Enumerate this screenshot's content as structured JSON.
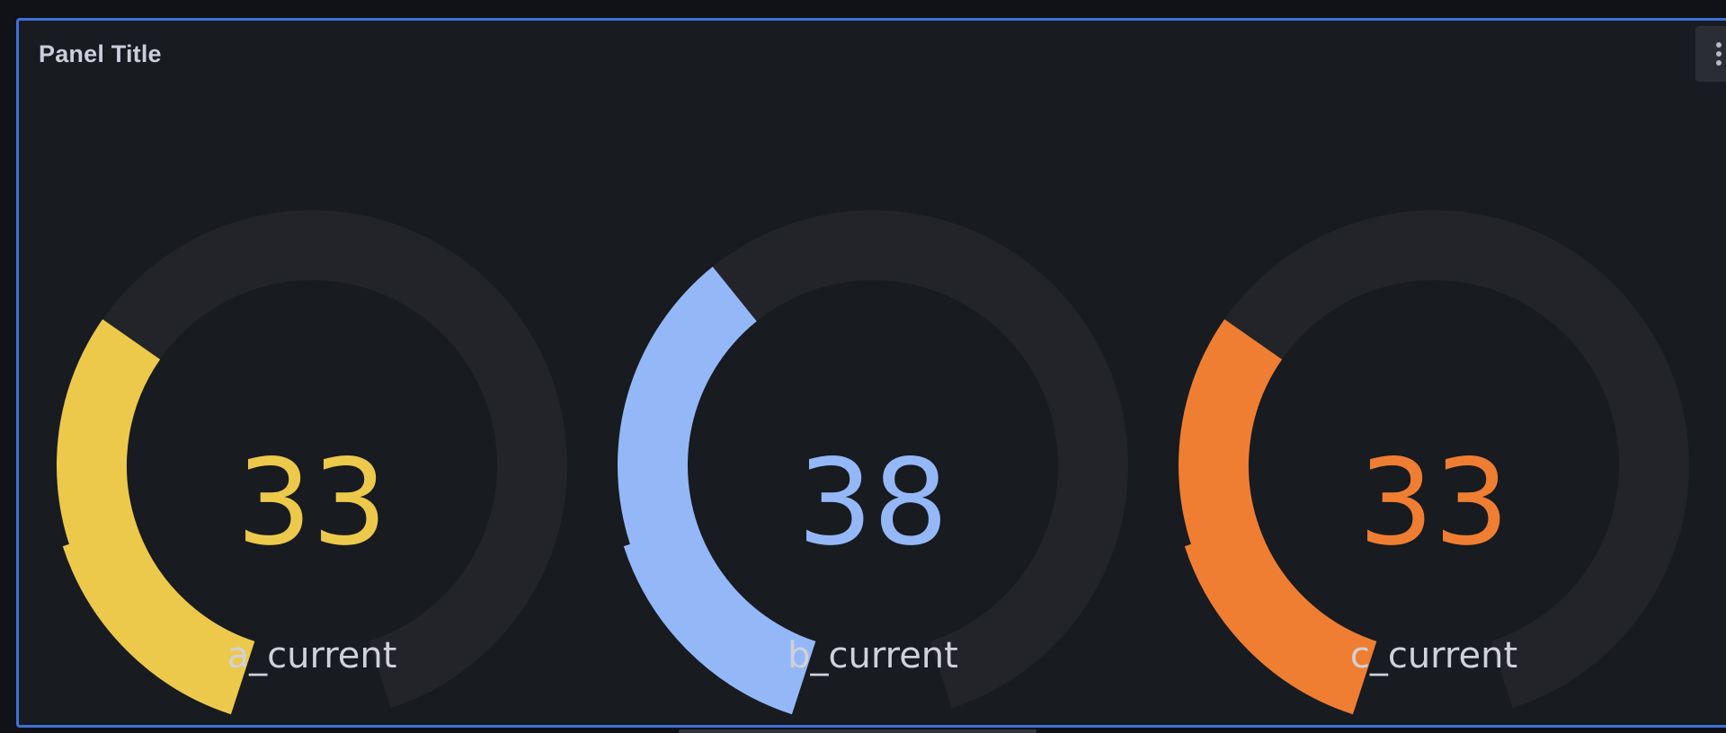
{
  "panel": {
    "title": "Panel Title",
    "accent": "#3d71d9",
    "menu_icon": "kebab-menu-icon"
  },
  "gauges": [
    {
      "name": "a_current",
      "value": "33",
      "fraction": 0.33,
      "color": "#ecc94b"
    },
    {
      "name": "b_current",
      "value": "38",
      "fraction": 0.38,
      "color": "#94b7f7"
    },
    {
      "name": "c_current",
      "value": "33",
      "fraction": 0.33,
      "color": "#ef7e32"
    }
  ],
  "track_color": "#222429"
}
